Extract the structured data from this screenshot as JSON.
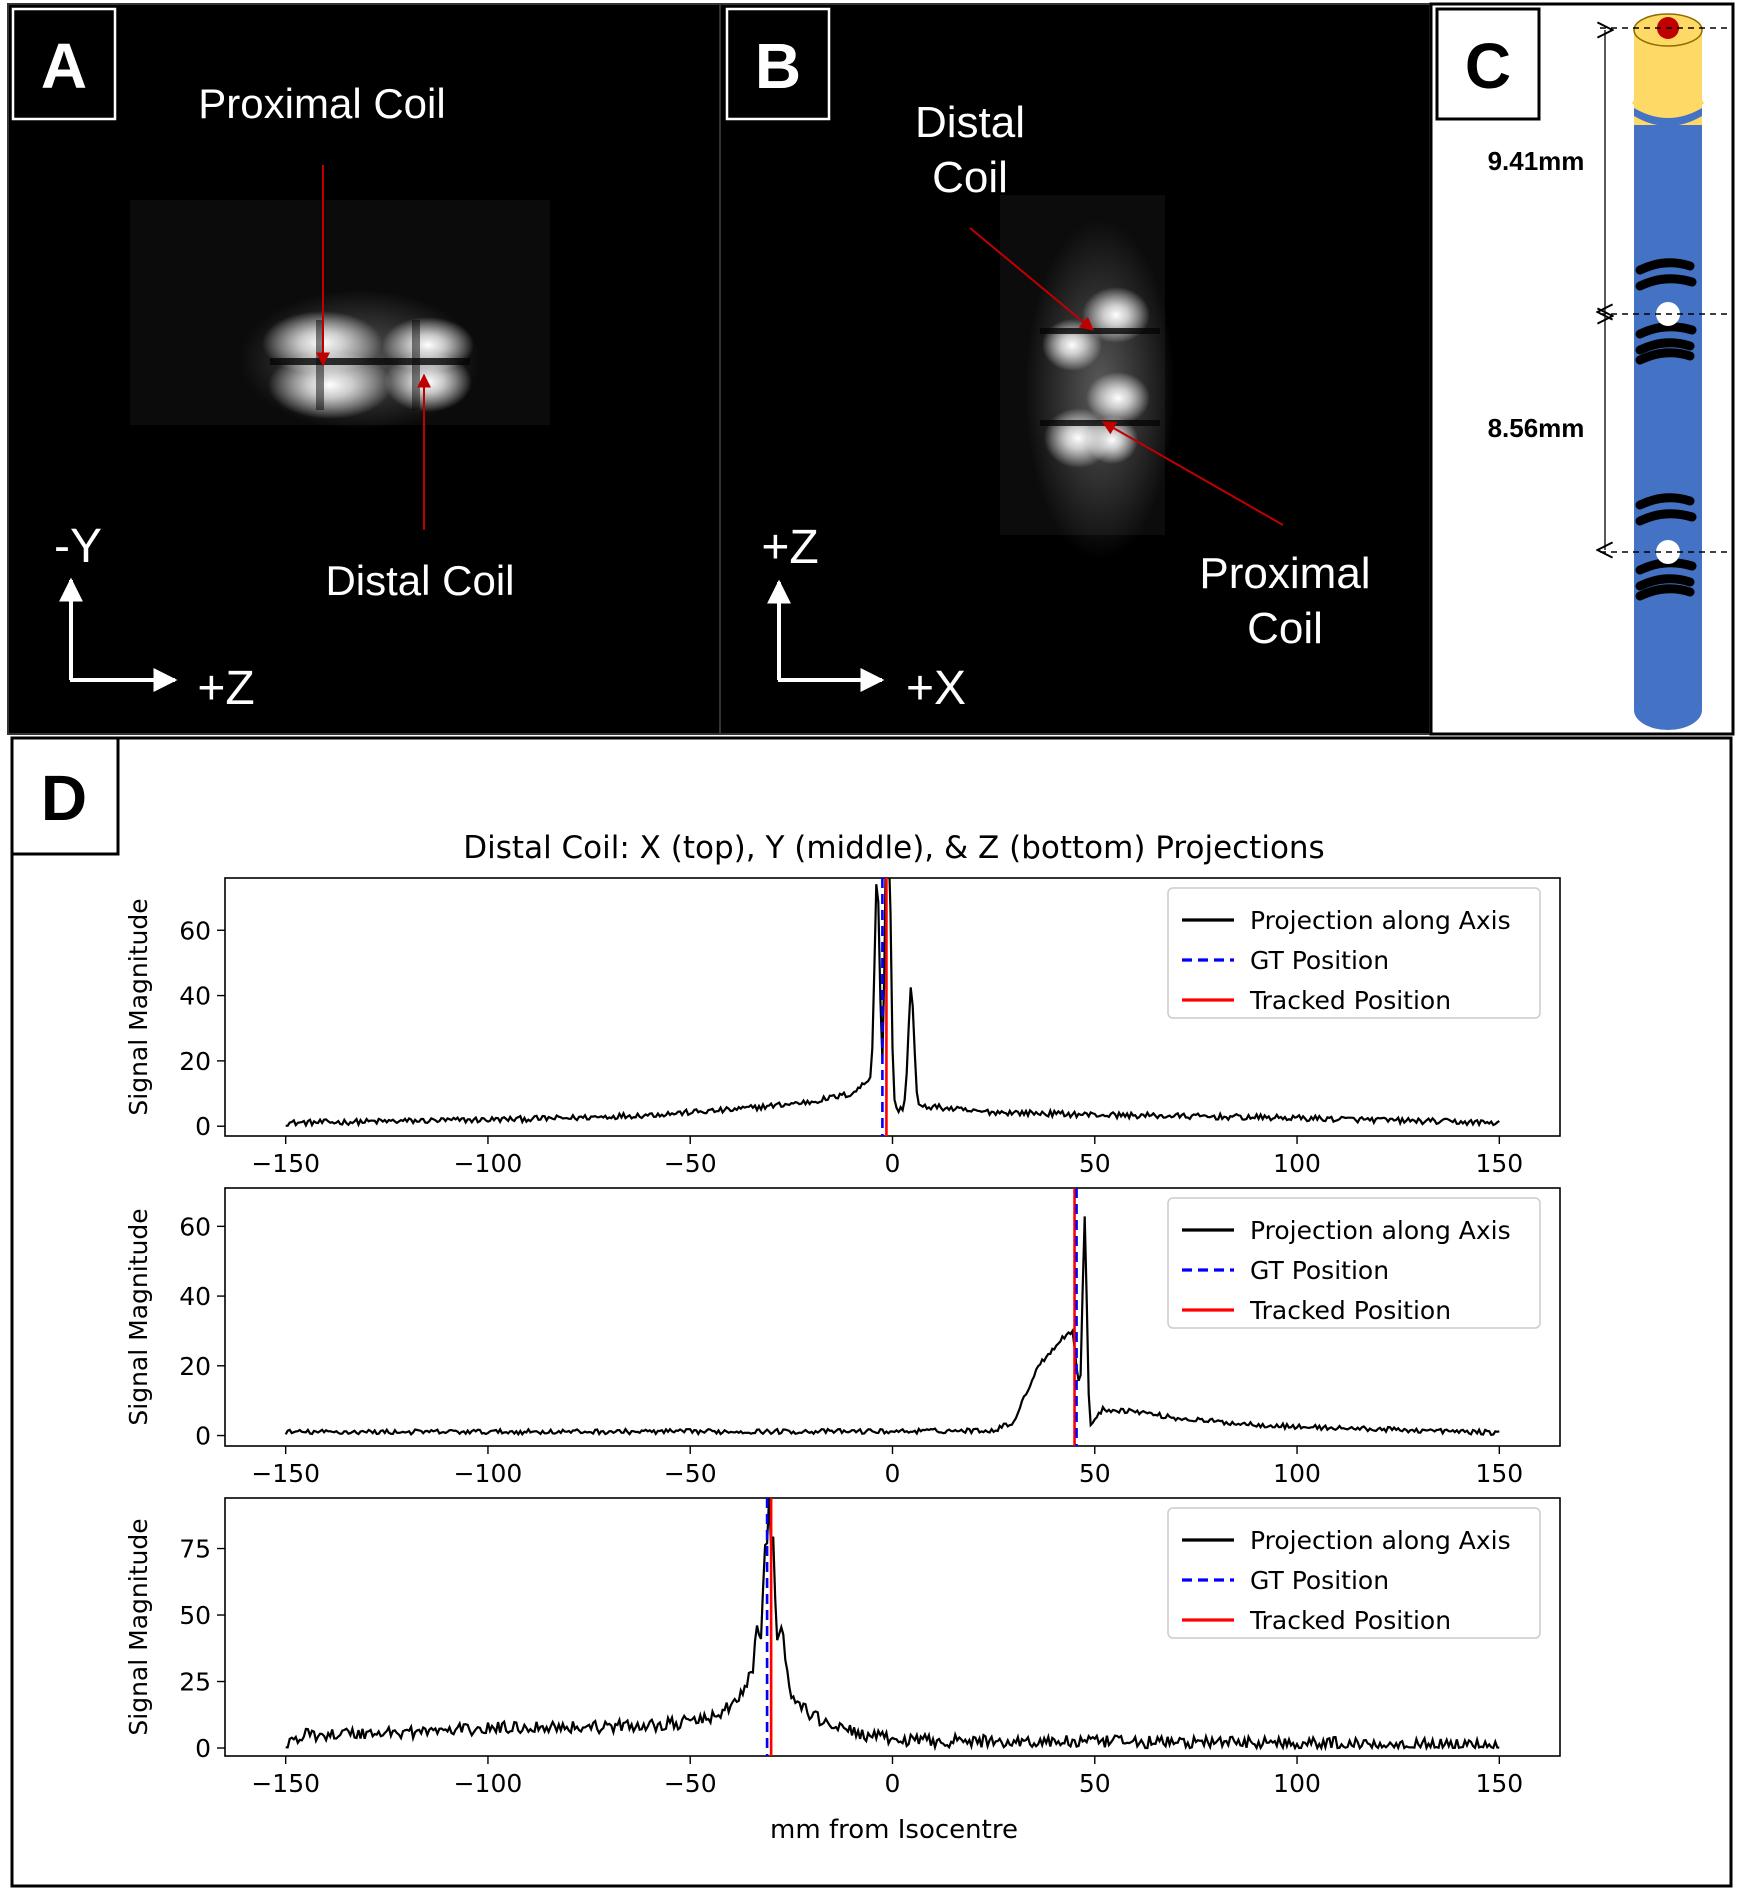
{
  "panel_a": {
    "letter": "A",
    "label_top": "Proximal Coil",
    "label_bottom": "Distal Coil",
    "axis_vertical": "-Y",
    "axis_horizontal": "+Z"
  },
  "panel_b": {
    "letter": "B",
    "label_top_line1": "Distal",
    "label_top_line2": "Coil",
    "label_bottom_line1": "Proximal",
    "label_bottom_line2": "Coil",
    "axis_vertical": "+Z",
    "axis_horizontal": "+X"
  },
  "panel_c": {
    "letter": "C",
    "dim_upper": "9.41mm",
    "dim_lower": "8.56mm",
    "colors": {
      "tube": "#4472C4",
      "tip": "#FFD966",
      "tip_dot": "#C00000"
    }
  },
  "panel_d": {
    "letter": "D"
  },
  "chart_data": {
    "type": "line",
    "title": "Distal Coil: X (top), Y (middle), & Z (bottom) Projections",
    "xlabel": "mm from Isocentre",
    "ylabel": "Signal Magnitude",
    "xlim": [
      -165,
      165
    ],
    "xticks": [
      -150,
      -100,
      -50,
      0,
      50,
      100,
      150
    ],
    "xtick_labels": [
      "−150",
      "−100",
      "−50",
      "0",
      "50",
      "100",
      "150"
    ],
    "legend": [
      "Projection along Axis",
      "GT Position",
      "Tracked Position"
    ],
    "legend_position": "top-right",
    "colors": {
      "projection": "#000000",
      "gt": "#0000ff",
      "tracked": "#ff0000"
    },
    "subplots": [
      {
        "name": "X",
        "ylim": [
          -3,
          76
        ],
        "yticks": [
          0,
          20,
          40,
          60
        ],
        "gt_position": -2.5,
        "tracked_position": -1.5,
        "baseline": [
          [
            -150,
            1
          ],
          [
            -100,
            2
          ],
          [
            -80,
            2.5
          ],
          [
            -60,
            3.5
          ],
          [
            -40,
            5
          ],
          [
            -20,
            7.5
          ],
          [
            -10,
            10
          ],
          [
            -6,
            14
          ],
          [
            -4.5,
            16
          ],
          [
            0,
            5
          ],
          [
            10,
            6
          ],
          [
            20,
            4.5
          ],
          [
            50,
            3.5
          ],
          [
            100,
            2.5
          ],
          [
            150,
            1
          ]
        ],
        "peaks": [
          [
            -3.8,
            63,
            0.6
          ],
          [
            -1.6,
            67,
            0.35
          ],
          [
            -0.8,
            70,
            0.5
          ],
          [
            4.6,
            37,
            0.7
          ]
        ],
        "noise": 0.9
      },
      {
        "name": "Y",
        "ylim": [
          -3,
          71
        ],
        "yticks": [
          0,
          20,
          40,
          60
        ],
        "gt_position": 45.5,
        "tracked_position": 45.0,
        "baseline": [
          [
            -150,
            1
          ],
          [
            0,
            1.2
          ],
          [
            25,
            1.5
          ],
          [
            30,
            4
          ],
          [
            33,
            12
          ],
          [
            36,
            20
          ],
          [
            39,
            24
          ],
          [
            42,
            28
          ],
          [
            44.5,
            30
          ],
          [
            46.5,
            10
          ],
          [
            49,
            3
          ],
          [
            52,
            7.5
          ],
          [
            60,
            7
          ],
          [
            70,
            5
          ],
          [
            85,
            3.5
          ],
          [
            100,
            2.5
          ],
          [
            150,
            0.8
          ]
        ],
        "peaks": [
          [
            47.5,
            55,
            0.5
          ]
        ],
        "noise": 0.7
      },
      {
        "name": "Z",
        "ylim": [
          -3,
          94
        ],
        "yticks": [
          0,
          25,
          50,
          75
        ],
        "gt_position": -31.0,
        "tracked_position": -30.0,
        "baseline": [
          [
            -150,
            1
          ],
          [
            -145,
            5
          ],
          [
            -120,
            6
          ],
          [
            -90,
            8
          ],
          [
            -70,
            8
          ],
          [
            -55,
            9
          ],
          [
            -45,
            11
          ],
          [
            -38,
            18
          ],
          [
            -35,
            28
          ],
          [
            -33,
            35
          ],
          [
            -28,
            40
          ],
          [
            -25,
            20
          ],
          [
            -20,
            12
          ],
          [
            -10,
            6
          ],
          [
            0,
            3
          ],
          [
            20,
            2.5
          ],
          [
            100,
            2
          ],
          [
            150,
            0.8
          ]
        ],
        "peaks": [
          [
            -33.5,
            14,
            0.4
          ],
          [
            -31.5,
            38,
            0.5
          ],
          [
            -30.5,
            48,
            0.35
          ],
          [
            -29.5,
            42,
            0.4
          ],
          [
            -27.2,
            8,
            0.5
          ]
        ],
        "noise": 2.4
      }
    ]
  }
}
